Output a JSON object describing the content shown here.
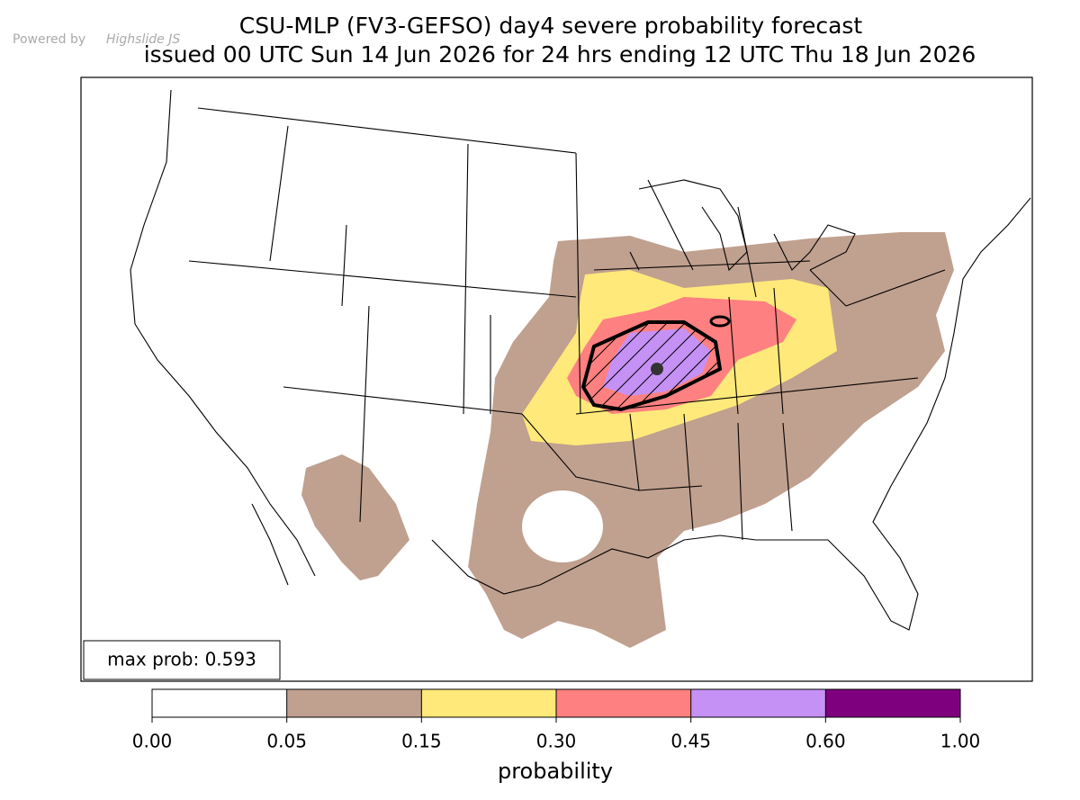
{
  "header": {
    "powered_by": "Powered by",
    "powered_by_brand": "Highslide JS"
  },
  "map": {
    "title": "CSU-MLP (FV3-GEFSO) day4 severe probability forecast",
    "subtitle": "issued 00 UTC Sun 14 Jun 2026 for 24 hrs ending 12 UTC Thu 18 Jun 2026",
    "max_prob_label": "max prob: 0.593"
  },
  "colorbar": {
    "label": "probability",
    "colors": [
      "#ffffff",
      "#c0a08f",
      "#ffe97a",
      "#ff8080",
      "#c591f5",
      "#7f007f"
    ],
    "ticks": [
      {
        "value": 0,
        "label": "0.00"
      },
      {
        "value": 0.05,
        "label": "0.05"
      },
      {
        "value": 0.15,
        "label": "0.15"
      },
      {
        "value": 0.3,
        "label": "0.30"
      },
      {
        "value": 0.45,
        "label": "0.45"
      },
      {
        "value": 0.6,
        "label": "0.60"
      },
      {
        "value": 1,
        "label": "1.00"
      }
    ]
  }
}
